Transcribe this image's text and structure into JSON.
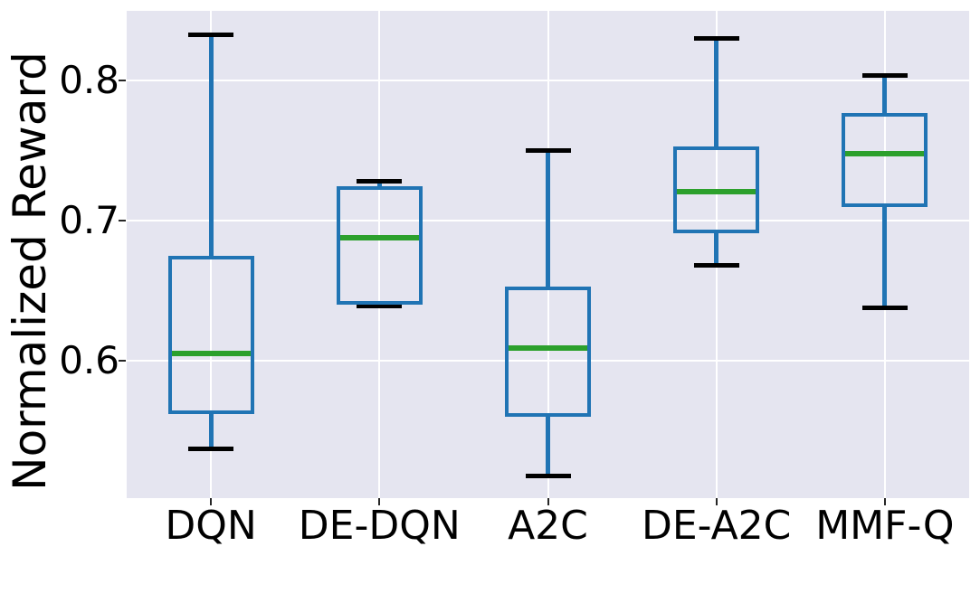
{
  "figure": {
    "plot_bg_color": "#e5e5f0",
    "grid_color": "#ffffff",
    "box_color": "#2074b4",
    "median_color": "#2ca02c",
    "cap_color": "#000000",
    "tick_color": "#262626",
    "text_color": "#000000"
  },
  "chart_data": {
    "type": "boxplot",
    "title": "",
    "xlabel": "",
    "ylabel": "Normalized Reward",
    "categories": [
      "DQN",
      "DE-DQN",
      "A2C",
      "DE-A2C",
      "MMF-Q"
    ],
    "y_ticks": [
      0.8,
      0.7,
      0.6
    ],
    "ylim": [
      0.502,
      0.85
    ],
    "grid": true,
    "legend": false,
    "series": [
      {
        "category": "DQN",
        "whisker_low": 0.537,
        "q1": 0.562,
        "median": 0.605,
        "q3": 0.675,
        "whisker_high": 0.833
      },
      {
        "category": "DE-DQN",
        "whisker_low": 0.639,
        "q1": 0.64,
        "median": 0.688,
        "q3": 0.725,
        "whisker_high": 0.728
      },
      {
        "category": "A2C",
        "whisker_low": 0.518,
        "q1": 0.56,
        "median": 0.609,
        "q3": 0.653,
        "whisker_high": 0.75
      },
      {
        "category": "DE-A2C",
        "whisker_low": 0.668,
        "q1": 0.691,
        "median": 0.721,
        "q3": 0.753,
        "whisker_high": 0.83
      },
      {
        "category": "MMF-Q",
        "whisker_low": 0.638,
        "q1": 0.71,
        "median": 0.748,
        "q3": 0.777,
        "whisker_high": 0.804
      }
    ]
  }
}
